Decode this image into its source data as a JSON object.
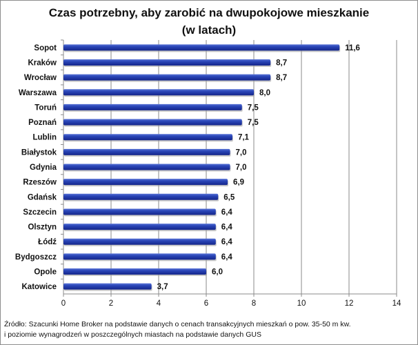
{
  "title_line1": "Czas potrzebny, aby zarobić na dwupokojowe mieszkanie",
  "title_line2": "(w latach)",
  "source_line1": "Źródło: Szacunki Home Broker na podstawie danych o cenach transakcyjnych mieszkań o pow. 35-50 m kw.",
  "source_line2": "i poziomie wynagrodzeń w poszczególnych miastach na podstawie danych GUS",
  "chart_data": {
    "type": "bar",
    "orientation": "horizontal",
    "categories": [
      "Sopot",
      "Kraków",
      "Wrocław",
      "Warszawa",
      "Toruń",
      "Poznań",
      "Lublin",
      "Białystok",
      "Gdynia",
      "Rzeszów",
      "Gdańsk",
      "Szczecin",
      "Olsztyn",
      "Łódź",
      "Bydgoszcz",
      "Opole",
      "Katowice"
    ],
    "values": [
      11.6,
      8.7,
      8.7,
      8.0,
      7.5,
      7.5,
      7.1,
      7.0,
      7.0,
      6.9,
      6.5,
      6.4,
      6.4,
      6.4,
      6.4,
      6.0,
      3.7
    ],
    "value_labels": [
      "11,6",
      "8,7",
      "8,7",
      "8,0",
      "7,5",
      "7,5",
      "7,1",
      "7,0",
      "7,0",
      "6,9",
      "6,5",
      "6,4",
      "6,4",
      "6,4",
      "6,4",
      "6,0",
      "3,7"
    ],
    "xlim": [
      0,
      14
    ],
    "xticks": [
      "0",
      "2",
      "4",
      "6",
      "8",
      "10",
      "12",
      "14"
    ],
    "grid": true,
    "bar_color": "#1f3aa8"
  }
}
